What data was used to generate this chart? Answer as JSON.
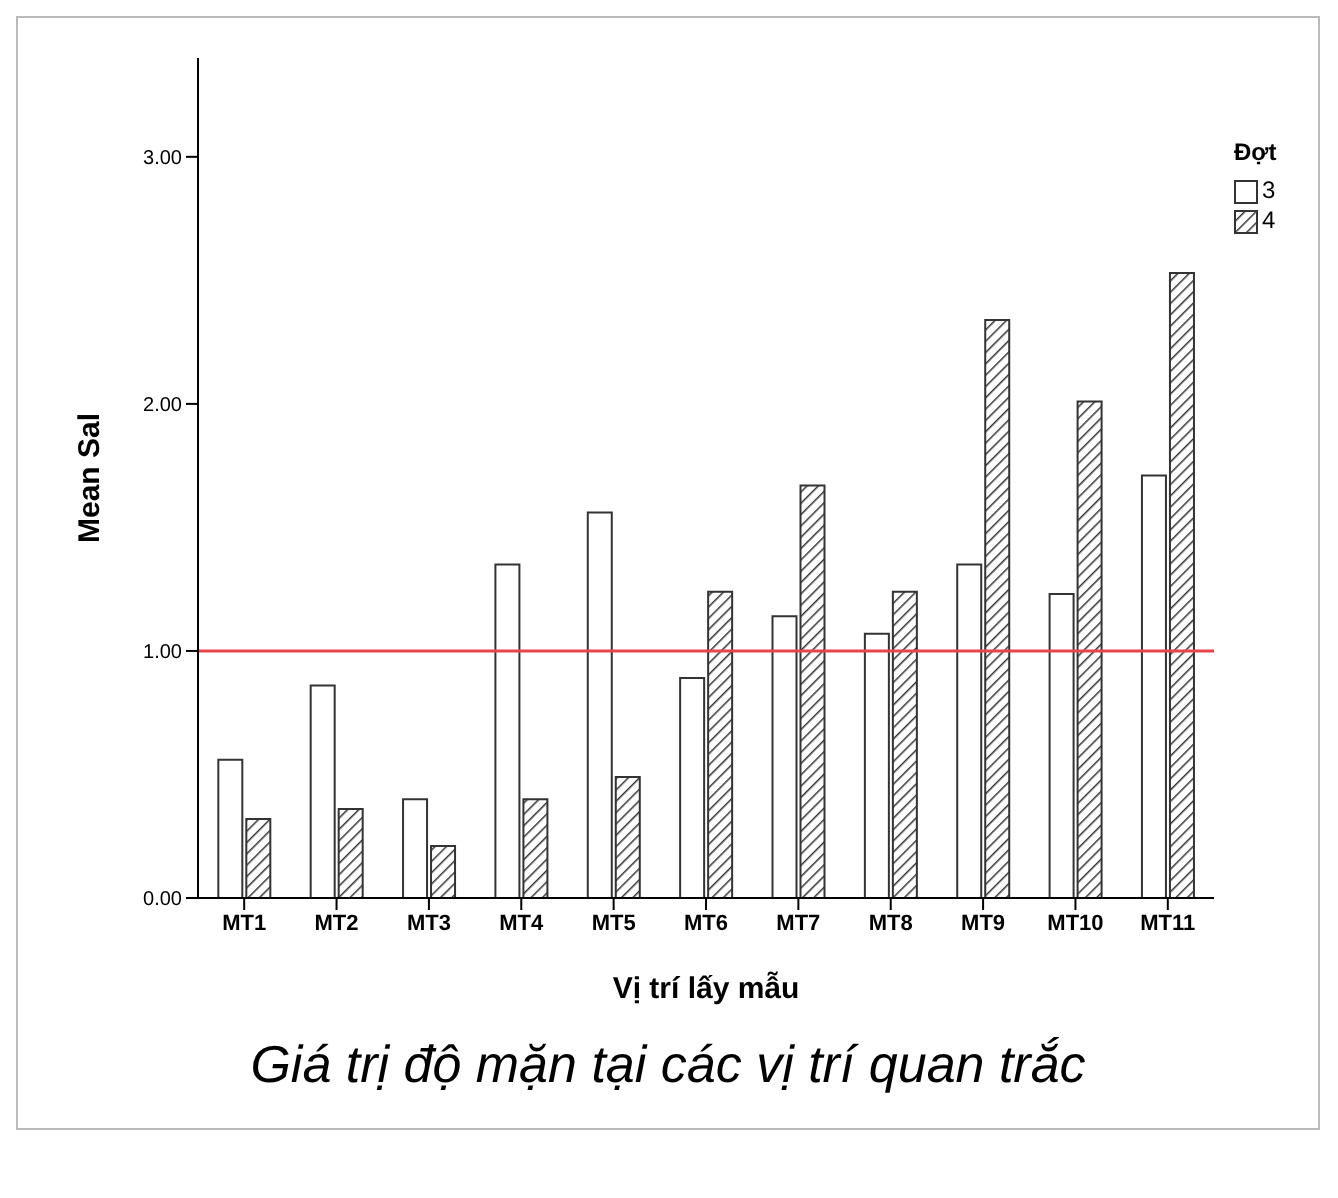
{
  "chart_data": {
    "type": "bar",
    "xlabel": "Vị trí lấy mẫu",
    "ylabel": "Mean Sal",
    "legend_title": "Đợt",
    "categories": [
      "MT1",
      "MT2",
      "MT3",
      "MT4",
      "MT5",
      "MT6",
      "MT7",
      "MT8",
      "MT9",
      "MT10",
      "MT11"
    ],
    "series": [
      {
        "name": "3",
        "color": "#ffffff",
        "values": [
          0.56,
          0.86,
          0.4,
          1.35,
          1.56,
          0.89,
          1.14,
          1.07,
          1.35,
          1.23,
          1.71
        ]
      },
      {
        "name": "4",
        "color": "#333333",
        "values": [
          0.32,
          0.36,
          0.21,
          0.4,
          0.49,
          1.24,
          1.67,
          1.24,
          2.34,
          2.01,
          2.53
        ]
      }
    ],
    "ylim": [
      0,
      3.4
    ],
    "yticks": [
      {
        "value": 0,
        "label": "0.00"
      },
      {
        "value": 1,
        "label": "1.00"
      },
      {
        "value": 2,
        "label": "2.00"
      },
      {
        "value": 3,
        "label": "3.00"
      }
    ],
    "ref_lines": [
      {
        "axis": "y",
        "value": 1,
        "color": "#e8454b"
      }
    ],
    "legend": "top right",
    "annotations": [
      "Giá trị độ mặn tại các vị trí quan trắc"
    ]
  }
}
